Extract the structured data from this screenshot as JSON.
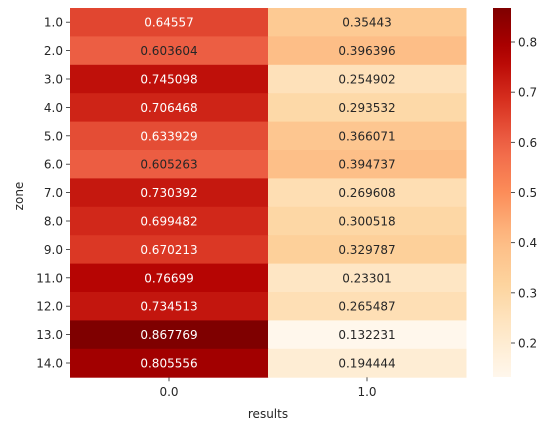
{
  "chart_data": {
    "type": "heatmap",
    "title": "",
    "xlabel": "results",
    "ylabel": "zone",
    "x_categories": [
      "0.0",
      "1.0"
    ],
    "y_categories": [
      "1.0",
      "2.0",
      "3.0",
      "4.0",
      "5.0",
      "6.0",
      "7.0",
      "8.0",
      "9.0",
      "11.0",
      "12.0",
      "13.0",
      "14.0"
    ],
    "values": [
      [
        0.64557,
        0.35443
      ],
      [
        0.603604,
        0.396396
      ],
      [
        0.745098,
        0.254902
      ],
      [
        0.706468,
        0.293532
      ],
      [
        0.633929,
        0.366071
      ],
      [
        0.605263,
        0.394737
      ],
      [
        0.730392,
        0.269608
      ],
      [
        0.699482,
        0.300518
      ],
      [
        0.670213,
        0.329787
      ],
      [
        0.76699,
        0.23301
      ],
      [
        0.734513,
        0.265487
      ],
      [
        0.867769,
        0.132231
      ],
      [
        0.805556,
        0.194444
      ]
    ],
    "value_labels": [
      [
        "0.64557",
        "0.35443"
      ],
      [
        "0.603604",
        "0.396396"
      ],
      [
        "0.745098",
        "0.254902"
      ],
      [
        "0.706468",
        "0.293532"
      ],
      [
        "0.633929",
        "0.366071"
      ],
      [
        "0.605263",
        "0.394737"
      ],
      [
        "0.730392",
        "0.269608"
      ],
      [
        "0.699482",
        "0.300518"
      ],
      [
        "0.670213",
        "0.329787"
      ],
      [
        "0.76699",
        "0.23301"
      ],
      [
        "0.734513",
        "0.265487"
      ],
      [
        "0.867769",
        "0.132231"
      ],
      [
        "0.805556",
        "0.194444"
      ]
    ],
    "colormap": "OrRd",
    "colorbar": {
      "vmin": 0.132231,
      "vmax": 0.867769,
      "ticks": [
        0.2,
        0.3,
        0.4,
        0.5,
        0.6,
        0.7,
        0.8
      ],
      "tick_labels": [
        "0.2",
        "0.3",
        "0.4",
        "0.5",
        "0.6",
        "0.7",
        "0.8"
      ]
    },
    "grid": false
  }
}
